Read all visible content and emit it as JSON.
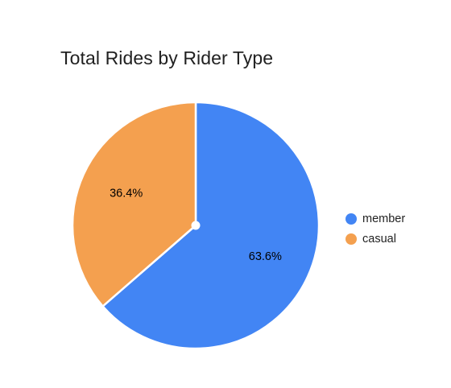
{
  "chart_data": {
    "type": "pie",
    "title": "Total Rides by Rider Type",
    "slices": [
      {
        "label": "member",
        "value": 63.6,
        "value_label": "63.6%",
        "color": "#4285f4"
      },
      {
        "label": "casual",
        "value": 36.4,
        "value_label": "36.4%",
        "color": "#f4a04f"
      }
    ],
    "start_angle_deg": 0,
    "direction": "clockwise",
    "legend_position": "right"
  }
}
